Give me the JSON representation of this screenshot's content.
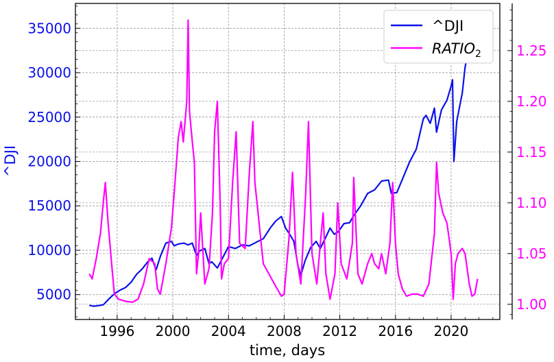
{
  "chart_data": {
    "type": "line",
    "xlabel": "time, days",
    "ylabel_left": "^DJI",
    "xlim": [
      1993.0,
      2023.5
    ],
    "ylim_left": [
      2200,
      37800
    ],
    "ylim_right": [
      0.985,
      1.2965
    ],
    "x_ticks": [
      1996,
      2000,
      2004,
      2008,
      2012,
      2016,
      2020
    ],
    "y_ticks_left": [
      5000,
      10000,
      15000,
      20000,
      25000,
      30000,
      35000
    ],
    "y_ticks_right": [
      1.0,
      1.05,
      1.1,
      1.15,
      1.2,
      1.25
    ],
    "grid": true,
    "legend": {
      "placement": "top-right",
      "dji_label": "^DJI",
      "ratio_base": "RATIO",
      "ratio_sub": "2"
    },
    "colors": {
      "dji": "#0a10e8",
      "ratio": "#ff00ff"
    },
    "series": [
      {
        "name": "^DJI",
        "axis": "left",
        "x": [
          1994.0,
          1994.3,
          1994.6,
          1995.0,
          1995.4,
          1995.8,
          1996.2,
          1996.6,
          1997.0,
          1997.4,
          1997.8,
          1998.2,
          1998.5,
          1998.8,
          1999.1,
          1999.5,
          1999.9,
          2000.1,
          2000.4,
          2000.8,
          2001.1,
          2001.4,
          2001.7,
          2001.9,
          2002.3,
          2002.6,
          2002.8,
          2003.2,
          2003.6,
          2004.0,
          2004.5,
          2005.0,
          2005.5,
          2006.0,
          2006.5,
          2007.0,
          2007.4,
          2007.8,
          2008.1,
          2008.4,
          2008.7,
          2009.0,
          2009.2,
          2009.5,
          2009.9,
          2010.3,
          2010.6,
          2011.0,
          2011.3,
          2011.6,
          2011.9,
          2012.3,
          2012.7,
          2013.0,
          2013.5,
          2014.0,
          2014.5,
          2015.0,
          2015.5,
          2015.7,
          2016.1,
          2016.5,
          2017.0,
          2017.5,
          2018.0,
          2018.2,
          2018.5,
          2018.8,
          2018.95,
          2019.3,
          2019.7,
          2020.0,
          2020.1,
          2020.2,
          2020.4,
          2020.8,
          2021.0,
          2021.3,
          2021.6,
          2021.9
        ],
        "values": [
          3800,
          3700,
          3750,
          3850,
          4500,
          5100,
          5500,
          5800,
          6400,
          7300,
          7900,
          8700,
          9100,
          7800,
          9300,
          10800,
          11000,
          10500,
          10700,
          10800,
          10600,
          10800,
          9400,
          9900,
          10200,
          8500,
          8700,
          8000,
          9200,
          10400,
          10200,
          10600,
          10500,
          10900,
          11300,
          12500,
          13300,
          13800,
          12500,
          11800,
          11000,
          8200,
          7200,
          8800,
          10300,
          11000,
          10200,
          11500,
          12500,
          11800,
          12100,
          13000,
          13100,
          13900,
          15000,
          16400,
          16800,
          17800,
          17900,
          16400,
          16500,
          18000,
          19900,
          21400,
          24800,
          25200,
          24300,
          26000,
          23300,
          25800,
          26900,
          28500,
          29200,
          20000,
          24500,
          27700,
          30600,
          33000,
          34800,
          36000
        ]
      },
      {
        "name": "RATIO2",
        "axis": "right",
        "x": [
          1994.0,
          1994.2,
          1994.5,
          1994.8,
          1995.0,
          1995.15,
          1995.35,
          1995.6,
          1995.8,
          1996.1,
          1996.6,
          1997.1,
          1997.5,
          1997.9,
          1998.3,
          1998.7,
          1998.9,
          1999.1,
          1999.5,
          1999.9,
          2000.1,
          2000.4,
          2000.6,
          2000.75,
          2001.0,
          2001.1,
          2001.2,
          2001.4,
          2001.55,
          2001.7,
          2001.85,
          2002.0,
          2002.3,
          2002.6,
          2002.85,
          2003.0,
          2003.2,
          2003.4,
          2003.5,
          2003.7,
          2004.0,
          2004.3,
          2004.55,
          2004.8,
          2005.2,
          2005.5,
          2005.75,
          2005.9,
          2006.2,
          2006.5,
          2006.9,
          2007.3,
          2007.8,
          2008.0,
          2008.35,
          2008.6,
          2008.85,
          2009.2,
          2009.55,
          2009.75,
          2010.0,
          2010.35,
          2010.6,
          2010.8,
          2011.0,
          2011.3,
          2011.65,
          2011.85,
          2012.1,
          2012.5,
          2012.9,
          2013.0,
          2013.3,
          2013.6,
          2014.0,
          2014.3,
          2014.5,
          2014.8,
          2015.0,
          2015.3,
          2015.6,
          2015.8,
          2016.0,
          2016.2,
          2016.5,
          2016.8,
          2017.2,
          2017.6,
          2018.0,
          2018.4,
          2018.8,
          2018.95,
          2019.1,
          2019.4,
          2019.7,
          2020.0,
          2020.15,
          2020.3,
          2020.5,
          2020.8,
          2021.0,
          2021.3,
          2021.5,
          2021.7,
          2021.9
        ],
        "values": [
          1.03,
          1.025,
          1.045,
          1.07,
          1.1,
          1.12,
          1.08,
          1.04,
          1.01,
          1.005,
          1.003,
          1.002,
          1.005,
          1.02,
          1.045,
          1.04,
          1.015,
          1.01,
          1.04,
          1.075,
          1.11,
          1.165,
          1.18,
          1.16,
          1.2,
          1.28,
          1.19,
          1.16,
          1.14,
          1.03,
          1.05,
          1.09,
          1.02,
          1.035,
          1.09,
          1.17,
          1.2,
          1.1,
          1.025,
          1.04,
          1.045,
          1.12,
          1.17,
          1.06,
          1.055,
          1.13,
          1.18,
          1.12,
          1.08,
          1.04,
          1.03,
          1.02,
          1.008,
          1.01,
          1.065,
          1.13,
          1.05,
          1.02,
          1.11,
          1.18,
          1.05,
          1.02,
          1.06,
          1.09,
          1.03,
          1.005,
          1.03,
          1.1,
          1.04,
          1.025,
          1.06,
          1.125,
          1.03,
          1.02,
          1.04,
          1.05,
          1.04,
          1.035,
          1.05,
          1.03,
          1.06,
          1.12,
          1.06,
          1.03,
          1.015,
          1.008,
          1.01,
          1.01,
          1.008,
          1.02,
          1.07,
          1.14,
          1.11,
          1.09,
          1.08,
          1.05,
          1.005,
          1.04,
          1.05,
          1.055,
          1.05,
          1.02,
          1.008,
          1.01,
          1.025
        ]
      }
    ]
  }
}
